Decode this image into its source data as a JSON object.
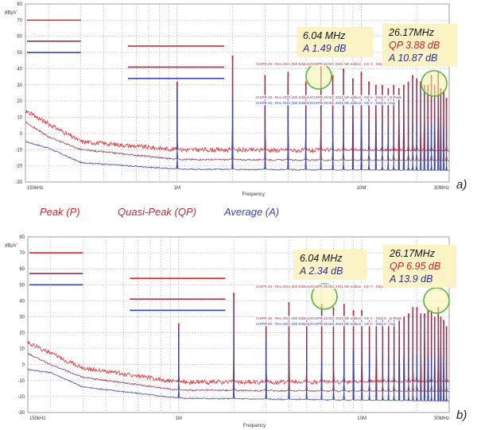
{
  "legend": {
    "peak": "Peak (P)",
    "quasi_peak": "Quasi-Peak (QP)",
    "average": "Average (A)"
  },
  "colors": {
    "peak": "#d6262b",
    "quasi_peak": "#8e3552",
    "average": "#3a44a6",
    "annotation_bg": "#fbf3c4",
    "marker_circle": "#52b83a"
  },
  "limit_labels": {
    "peak": "CISPR 25 - Rev 2021 (5th Edition)/CISPR 25:IEC 2021 5th edition - CE V - Strip 5 - Peak",
    "quasi_peak": "CISPR 25 - Rev 2021 (5th Edition)/CISPR 25:IEC 2021 5th edition - CE V - Strip 5 - Q-Peak",
    "average": "CISPR 25 - Rev 2021 (5th Edition)/CISPR 25:IEC 2021 5th edition - CE V - Strip 5 - Avg"
  },
  "chart_data": [
    {
      "panel": "a)",
      "type": "line",
      "title": "",
      "xlabel": "Frequency",
      "ylabel": "dBµV",
      "xscale": "log",
      "xlim": [
        0.15,
        30
      ],
      "ylim": [
        -30,
        80
      ],
      "xticks": [
        {
          "value": 0.15,
          "label": "150kHz"
        },
        {
          "value": 1,
          "label": "1M"
        },
        {
          "value": 10,
          "label": "10M"
        },
        {
          "value": 30,
          "label": "30MHz"
        }
      ],
      "yticks": [
        80,
        70,
        60,
        50,
        40,
        30,
        20,
        10,
        0,
        -10,
        -20,
        -30
      ],
      "grid": true,
      "limits": [
        {
          "name": "Peak limit band 1",
          "series": "peak",
          "x": [
            0.15,
            0.3
          ],
          "y": 70
        },
        {
          "name": "QP limit band 1",
          "series": "quasi_peak",
          "x": [
            0.15,
            0.3
          ],
          "y": 57
        },
        {
          "name": "Avg limit band 1",
          "series": "average",
          "x": [
            0.15,
            0.3
          ],
          "y": 50
        },
        {
          "name": "Peak limit band 2",
          "series": "peak",
          "x": [
            0.53,
            1.8
          ],
          "y": 54
        },
        {
          "name": "QP limit band 2",
          "series": "quasi_peak",
          "x": [
            0.53,
            1.8
          ],
          "y": 41
        },
        {
          "name": "Avg limit band 2",
          "series": "average",
          "x": [
            0.53,
            1.8
          ],
          "y": 34
        }
      ],
      "baseline": {
        "peak": [
          [
            0.15,
            14
          ],
          [
            0.2,
            6
          ],
          [
            0.3,
            -5
          ],
          [
            1,
            -10
          ],
          [
            30,
            -11
          ]
        ],
        "quasi_peak": [
          [
            0.15,
            7
          ],
          [
            0.2,
            -2
          ],
          [
            0.3,
            -10
          ],
          [
            1,
            -16
          ],
          [
            30,
            -17
          ]
        ],
        "average": [
          [
            0.15,
            -5
          ],
          [
            0.2,
            -9
          ],
          [
            0.3,
            -18
          ],
          [
            1,
            -22
          ],
          [
            30,
            -23
          ]
        ]
      },
      "harmonics": [
        {
          "f": 1.0,
          "peak": 32,
          "avg": 28
        },
        {
          "f": 2.0,
          "peak": 48,
          "avg": 22
        },
        {
          "f": 3.0,
          "peak": 36,
          "avg": 18
        },
        {
          "f": 4.0,
          "peak": 38,
          "avg": 18
        },
        {
          "f": 5.0,
          "peak": 32,
          "avg": 14
        },
        {
          "f": 6.04,
          "peak": 42,
          "avg": 1.5
        },
        {
          "f": 7.0,
          "peak": 36,
          "avg": 12
        },
        {
          "f": 8.0,
          "peak": 40,
          "avg": 10
        },
        {
          "f": 9.0,
          "peak": 34,
          "avg": 8
        },
        {
          "f": 10.0,
          "peak": 38,
          "avg": 8
        },
        {
          "f": 11.0,
          "peak": 32,
          "avg": 8
        },
        {
          "f": 12.0,
          "peak": 30,
          "avg": 6
        },
        {
          "f": 13.0,
          "peak": 30,
          "avg": 6
        },
        {
          "f": 14.0,
          "peak": 28,
          "avg": 4
        },
        {
          "f": 15.0,
          "peak": 30,
          "avg": 4
        },
        {
          "f": 16.0,
          "peak": 28,
          "avg": 4
        },
        {
          "f": 17.0,
          "peak": 30,
          "avg": 4
        },
        {
          "f": 18.0,
          "peak": 32,
          "avg": 4
        },
        {
          "f": 19.0,
          "peak": 36,
          "avg": 6
        },
        {
          "f": 20.0,
          "peak": 34,
          "avg": 6
        },
        {
          "f": 21.0,
          "peak": 32,
          "avg": 6
        },
        {
          "f": 22.0,
          "peak": 30,
          "avg": 4
        },
        {
          "f": 23.0,
          "peak": 30,
          "avg": 4
        },
        {
          "f": 24.0,
          "peak": 36,
          "avg": 6
        },
        {
          "f": 25.0,
          "peak": 30,
          "avg": 6
        },
        {
          "f": 26.17,
          "peak": 38,
          "avg": 10.87
        },
        {
          "f": 27.0,
          "peak": 28,
          "avg": 6
        },
        {
          "f": 28.0,
          "peak": 26,
          "avg": 4
        },
        {
          "f": 29.0,
          "peak": 22,
          "avg": 2
        }
      ],
      "annotations": [
        {
          "freq_label": "6.04 MHz",
          "lines": [
            {
              "series": "average",
              "text": "A 1.49 dB"
            }
          ]
        },
        {
          "freq_label": "26.17MHz",
          "lines": [
            {
              "series": "quasi_peak",
              "text": "QP 3.88 dB"
            },
            {
              "series": "average",
              "text": "A 10.87 dB"
            }
          ]
        }
      ]
    },
    {
      "panel": "b)",
      "type": "line",
      "title": "",
      "xlabel": "Frequency",
      "ylabel": "dBµV",
      "xscale": "log",
      "xlim": [
        0.15,
        30
      ],
      "ylim": [
        -30,
        80
      ],
      "xticks": [
        {
          "value": 0.15,
          "label": "150kHz"
        },
        {
          "value": 1,
          "label": "1M"
        },
        {
          "value": 10,
          "label": "10M"
        },
        {
          "value": 30,
          "label": "30MHz"
        }
      ],
      "yticks": [
        80,
        70,
        60,
        50,
        40,
        30,
        20,
        10,
        0,
        -10,
        -20,
        -30
      ],
      "grid": true,
      "limits": [
        {
          "name": "Peak limit band 1",
          "series": "peak",
          "x": [
            0.15,
            0.3
          ],
          "y": 70
        },
        {
          "name": "QP limit band 1",
          "series": "quasi_peak",
          "x": [
            0.15,
            0.3
          ],
          "y": 57
        },
        {
          "name": "Avg limit band 1",
          "series": "average",
          "x": [
            0.15,
            0.3
          ],
          "y": 50
        },
        {
          "name": "Peak limit band 2",
          "series": "peak",
          "x": [
            0.53,
            1.8
          ],
          "y": 54
        },
        {
          "name": "QP limit band 2",
          "series": "quasi_peak",
          "x": [
            0.53,
            1.8
          ],
          "y": 41
        },
        {
          "name": "Avg limit band 2",
          "series": "average",
          "x": [
            0.53,
            1.8
          ],
          "y": 34
        }
      ],
      "baseline": {
        "peak": [
          [
            0.15,
            14
          ],
          [
            0.2,
            7
          ],
          [
            0.3,
            -2
          ],
          [
            1,
            -11
          ],
          [
            30,
            -11
          ]
        ],
        "quasi_peak": [
          [
            0.15,
            7
          ],
          [
            0.2,
            0
          ],
          [
            0.3,
            -8
          ],
          [
            1,
            -16
          ],
          [
            30,
            -17
          ]
        ],
        "average": [
          [
            0.15,
            -3
          ],
          [
            0.2,
            -5
          ],
          [
            0.3,
            -14
          ],
          [
            1,
            -21
          ],
          [
            30,
            -23
          ]
        ]
      },
      "harmonics": [
        {
          "f": 1.0,
          "peak": 26,
          "avg": 22
        },
        {
          "f": 2.0,
          "peak": 45,
          "avg": 18
        },
        {
          "f": 3.0,
          "peak": 26,
          "avg": 14
        },
        {
          "f": 4.0,
          "peak": 39,
          "avg": 14
        },
        {
          "f": 5.0,
          "peak": 28,
          "avg": 12
        },
        {
          "f": 6.04,
          "peak": 38,
          "avg": 2.3
        },
        {
          "f": 7.0,
          "peak": 36,
          "avg": 10
        },
        {
          "f": 8.0,
          "peak": 38,
          "avg": 10
        },
        {
          "f": 9.0,
          "peak": 34,
          "avg": 8
        },
        {
          "f": 10.0,
          "peak": 34,
          "avg": 8
        },
        {
          "f": 11.0,
          "peak": 28,
          "avg": 6
        },
        {
          "f": 12.0,
          "peak": 28,
          "avg": 6
        },
        {
          "f": 13.0,
          "peak": 30,
          "avg": 6
        },
        {
          "f": 14.0,
          "peak": 28,
          "avg": 4
        },
        {
          "f": 15.0,
          "peak": 30,
          "avg": 4
        },
        {
          "f": 16.0,
          "peak": 30,
          "avg": 4
        },
        {
          "f": 17.0,
          "peak": 30,
          "avg": 4
        },
        {
          "f": 18.0,
          "peak": 32,
          "avg": 4
        },
        {
          "f": 19.0,
          "peak": 36,
          "avg": 6
        },
        {
          "f": 20.0,
          "peak": 36,
          "avg": 6
        },
        {
          "f": 21.0,
          "peak": 32,
          "avg": 6
        },
        {
          "f": 22.0,
          "peak": 32,
          "avg": 4
        },
        {
          "f": 23.0,
          "peak": 34,
          "avg": 4
        },
        {
          "f": 24.0,
          "peak": 34,
          "avg": 6
        },
        {
          "f": 25.0,
          "peak": 30,
          "avg": 6
        },
        {
          "f": 26.17,
          "peak": 36,
          "avg": 13.9
        },
        {
          "f": 27.0,
          "peak": 30,
          "avg": 6
        },
        {
          "f": 28.0,
          "peak": 28,
          "avg": 4
        },
        {
          "f": 29.0,
          "peak": 24,
          "avg": 2
        }
      ],
      "annotations": [
        {
          "freq_label": "6.04 MHz",
          "lines": [
            {
              "series": "average",
              "text": "A 2.34 dB"
            }
          ]
        },
        {
          "freq_label": "26.17MHz",
          "lines": [
            {
              "series": "quasi_peak",
              "text": "QP 6.95 dB"
            },
            {
              "series": "average",
              "text": "A 13.9 dB"
            }
          ]
        }
      ]
    }
  ]
}
